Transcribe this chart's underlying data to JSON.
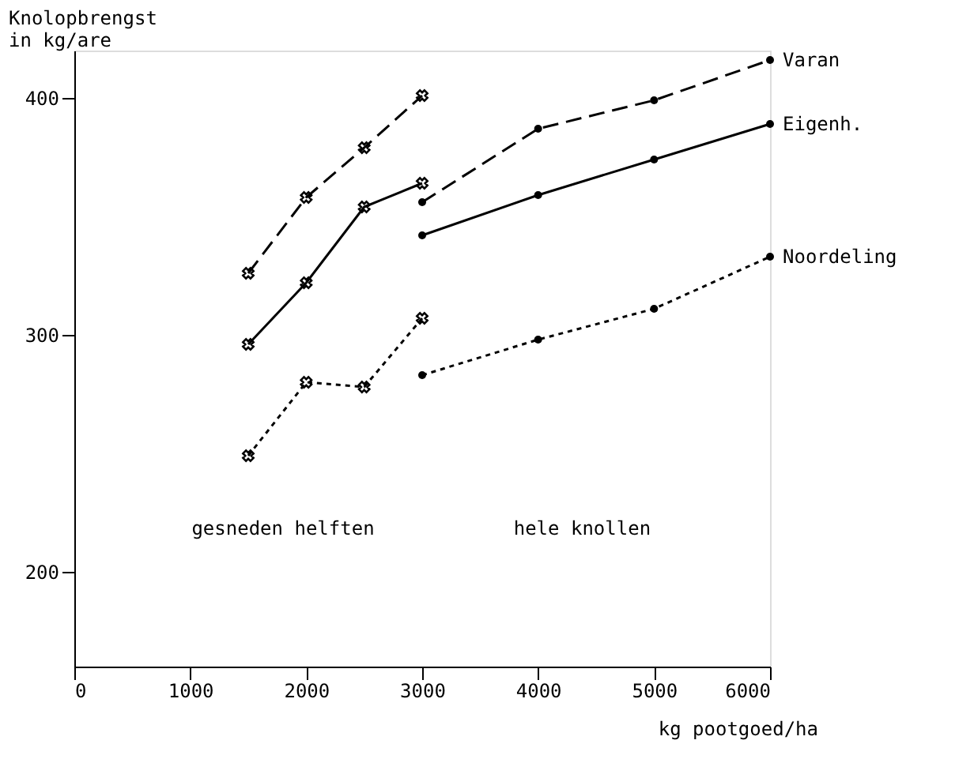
{
  "chart_data": {
    "type": "line",
    "xlabel": "kg pootgoed/ha",
    "ylabel": "Knolopbrengst\nin kg/are",
    "xlim": [
      0,
      6000
    ],
    "xticks": [
      0,
      1000,
      2000,
      3000,
      4000,
      5000,
      6000
    ],
    "ylim": [
      160,
      420
    ],
    "yticks": [
      200,
      300,
      400
    ],
    "grid": false,
    "annotations": [
      "gesneden helften",
      "hele knollen"
    ],
    "series": [
      {
        "color": "#000000",
        "marker": "cross",
        "line_style": "dashed",
        "x": [
          1500,
          2000,
          2500,
          3000
        ],
        "values": [
          326,
          358,
          379,
          401
        ]
      },
      {
        "color": "#000000",
        "marker": "cross",
        "line_style": "solid",
        "x": [
          1500,
          2000,
          2500,
          3000
        ],
        "values": [
          296,
          322,
          354,
          364
        ]
      },
      {
        "color": "#000000",
        "marker": "cross",
        "line_style": "dotted",
        "x": [
          1500,
          2000,
          2500,
          3000
        ],
        "values": [
          249,
          280,
          278,
          307
        ]
      },
      {
        "name": "Varan",
        "color": "#000000",
        "marker": "circle",
        "line_style": "dashed",
        "x": [
          3000,
          4000,
          5000,
          6000
        ],
        "values": [
          356,
          387,
          399,
          416
        ]
      },
      {
        "name": "Eigenh.",
        "color": "#000000",
        "marker": "circle",
        "line_style": "solid",
        "x": [
          3000,
          4000,
          5000,
          6000
        ],
        "values": [
          342,
          359,
          374,
          389
        ]
      },
      {
        "name": "Noordeling",
        "color": "#000000",
        "marker": "circle",
        "line_style": "dotted",
        "x": [
          3000,
          4000,
          5000,
          6000
        ],
        "values": [
          283,
          298,
          311,
          333
        ]
      }
    ]
  }
}
